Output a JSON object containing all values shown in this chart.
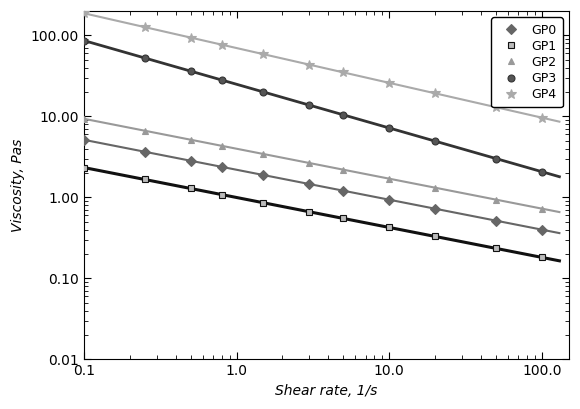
{
  "title": "",
  "xlabel": "Shear rate, 1/s",
  "ylabel": "Viscosity, Pas",
  "xlim": [
    0.1,
    150.0
  ],
  "ylim": [
    0.01,
    200.0
  ],
  "series": [
    {
      "name": "GP0",
      "color": "#666666",
      "linewidth": 1.5,
      "marker": "D",
      "markersize": 5,
      "markerfacecolor": "#666666",
      "K": 2.2,
      "n": 0.63
    },
    {
      "name": "GP1",
      "color": "#111111",
      "linewidth": 2.2,
      "marker": "s",
      "markersize": 5,
      "markerfacecolor": "#bbbbbb",
      "K": 1.0,
      "n": 0.63
    },
    {
      "name": "GP2",
      "color": "#999999",
      "linewidth": 1.5,
      "marker": "^",
      "markersize": 5,
      "markerfacecolor": "#999999",
      "K": 4.0,
      "n": 0.63
    },
    {
      "name": "GP3",
      "color": "#333333",
      "linewidth": 2.0,
      "marker": "o",
      "markersize": 5,
      "markerfacecolor": "#555555",
      "K": 25.0,
      "n": 0.46
    },
    {
      "name": "GP4",
      "color": "#aaaaaa",
      "linewidth": 1.5,
      "marker": "*",
      "markersize": 7,
      "markerfacecolor": "#aaaaaa",
      "K": 70.0,
      "n": 0.57
    }
  ],
  "marker_x": [
    0.1,
    0.25,
    0.5,
    0.8,
    1.5,
    3.0,
    5.0,
    10.0,
    20.0,
    50.0,
    100.0
  ],
  "background_color": "#ffffff"
}
